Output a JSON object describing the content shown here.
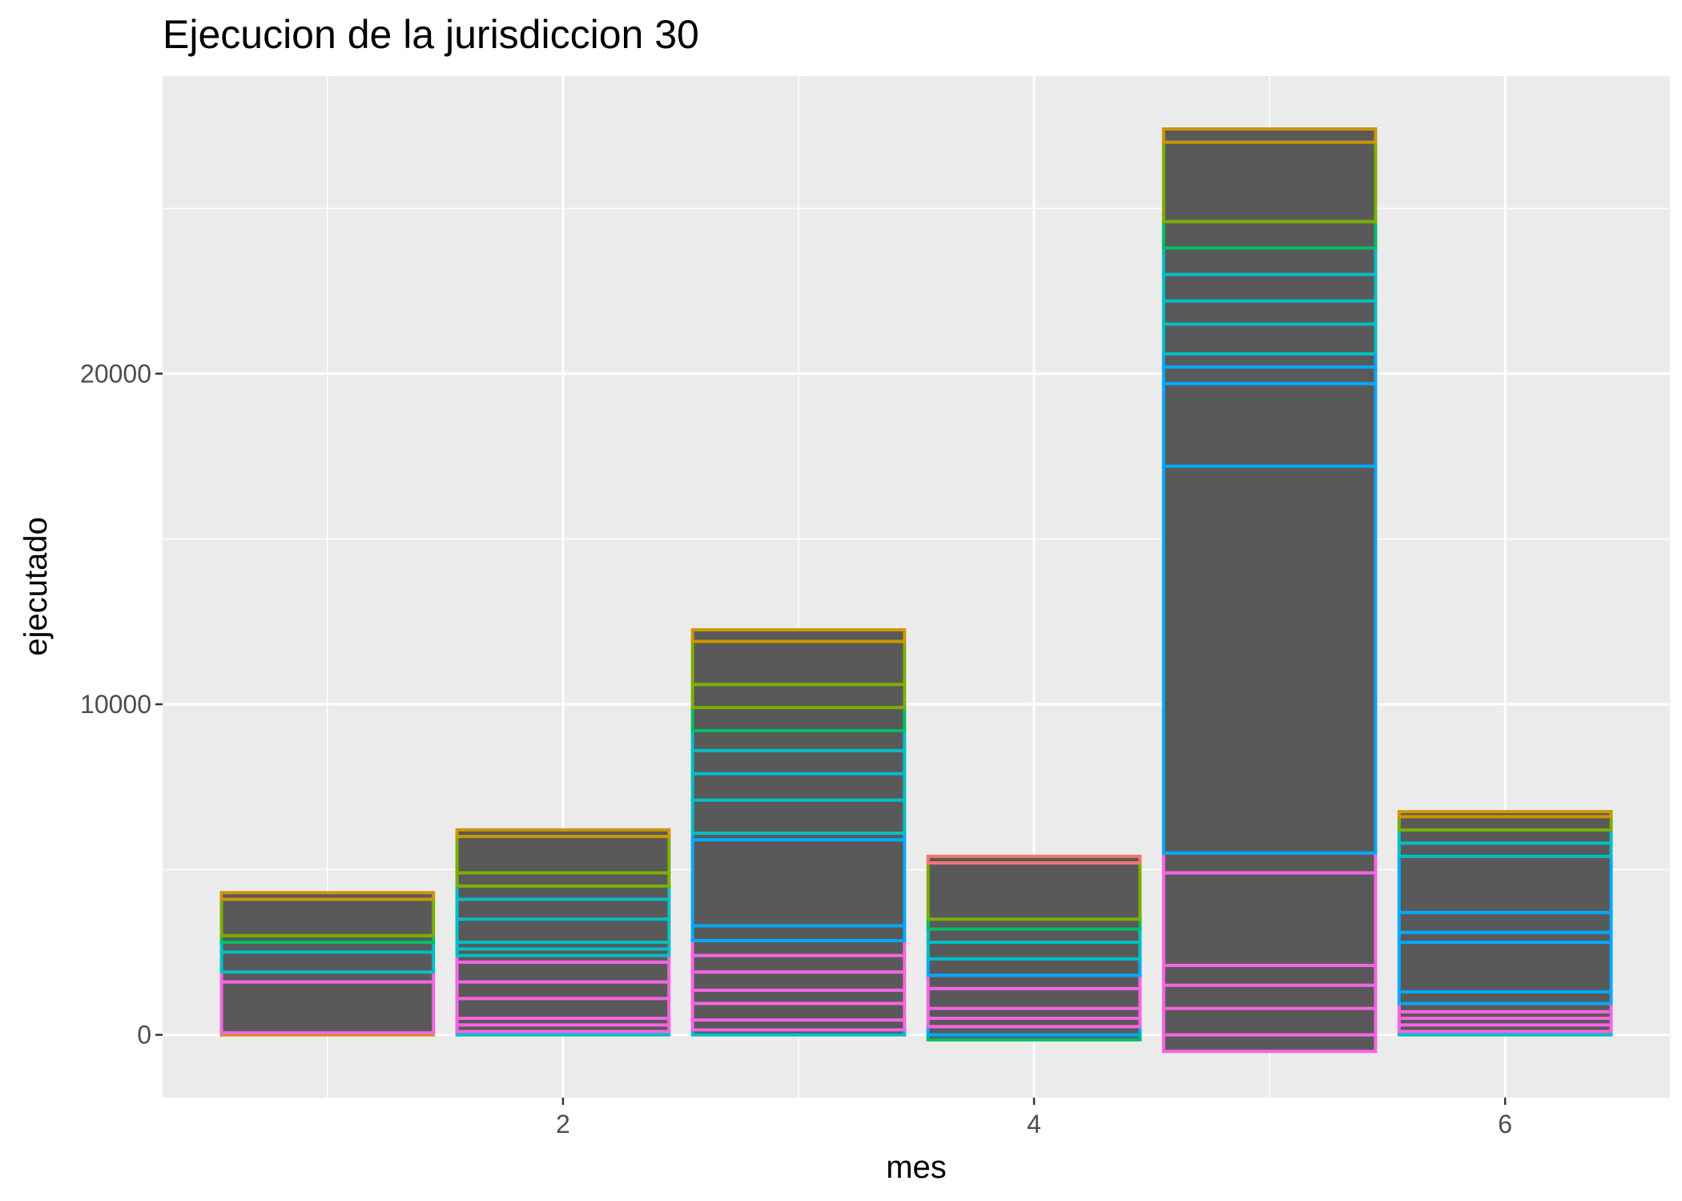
{
  "chart_data": {
    "type": "bar",
    "stacked": true,
    "title": "Ejecucion de la jurisdiccion 30",
    "xlabel": "mes",
    "ylabel": "ejecutado",
    "x": [
      1,
      2,
      3,
      4,
      5,
      6
    ],
    "xlim": [
      0.3,
      6.7
    ],
    "ylim": [
      -1900,
      29000
    ],
    "x_ticks": [
      2,
      4,
      6
    ],
    "y_ticks": [
      0,
      10000,
      20000
    ],
    "grid": true,
    "legend": "none",
    "colors": {
      "panel": "#ebebeb",
      "gridline": "#ffffff",
      "bar_fill": "#595959",
      "pink": "#f564e3",
      "blue": "#00a9ff",
      "cyan": "#00bfc4",
      "green": "#00be67",
      "olive": "#7cae00",
      "gold": "#cd9600",
      "coral": "#f8766d"
    },
    "bars": [
      {
        "x": 1,
        "total": 4300,
        "segments": [
          {
            "from": 0,
            "to": 60,
            "color": "gold"
          },
          {
            "from": 60,
            "to": 1600,
            "color": "pink"
          },
          {
            "from": 1600,
            "to": 1900,
            "color": "pink"
          },
          {
            "from": 1900,
            "to": 2500,
            "color": "cyan"
          },
          {
            "from": 2500,
            "to": 2800,
            "color": "cyan"
          },
          {
            "from": 2800,
            "to": 3000,
            "color": "green"
          },
          {
            "from": 3000,
            "to": 4100,
            "color": "olive"
          },
          {
            "from": 4100,
            "to": 4300,
            "color": "gold"
          }
        ]
      },
      {
        "x": 2,
        "total": 6200,
        "segments": [
          {
            "from": 0,
            "to": 100,
            "color": "cyan"
          },
          {
            "from": 100,
            "to": 300,
            "color": "pink"
          },
          {
            "from": 300,
            "to": 500,
            "color": "pink"
          },
          {
            "from": 500,
            "to": 1100,
            "color": "pink"
          },
          {
            "from": 1100,
            "to": 1600,
            "color": "pink"
          },
          {
            "from": 1600,
            "to": 2200,
            "color": "pink"
          },
          {
            "from": 2200,
            "to": 2400,
            "color": "pink"
          },
          {
            "from": 2400,
            "to": 2600,
            "color": "cyan"
          },
          {
            "from": 2600,
            "to": 2800,
            "color": "cyan"
          },
          {
            "from": 2800,
            "to": 3500,
            "color": "cyan"
          },
          {
            "from": 3500,
            "to": 4100,
            "color": "cyan"
          },
          {
            "from": 4100,
            "to": 4500,
            "color": "cyan"
          },
          {
            "from": 4500,
            "to": 4900,
            "color": "olive"
          },
          {
            "from": 4900,
            "to": 6000,
            "color": "olive"
          },
          {
            "from": 6000,
            "to": 6200,
            "color": "gold"
          }
        ]
      },
      {
        "x": 3,
        "total": 12250,
        "segments": [
          {
            "from": 0,
            "to": 150,
            "color": "cyan"
          },
          {
            "from": 150,
            "to": 450,
            "color": "pink"
          },
          {
            "from": 450,
            "to": 950,
            "color": "pink"
          },
          {
            "from": 950,
            "to": 1350,
            "color": "pink"
          },
          {
            "from": 1350,
            "to": 1900,
            "color": "pink"
          },
          {
            "from": 1900,
            "to": 2400,
            "color": "pink"
          },
          {
            "from": 2400,
            "to": 2850,
            "color": "pink"
          },
          {
            "from": 2850,
            "to": 3300,
            "color": "blue"
          },
          {
            "from": 3300,
            "to": 5900,
            "color": "blue"
          },
          {
            "from": 5900,
            "to": 6100,
            "color": "blue"
          },
          {
            "from": 6100,
            "to": 7100,
            "color": "cyan"
          },
          {
            "from": 7100,
            "to": 7900,
            "color": "cyan"
          },
          {
            "from": 7900,
            "to": 8600,
            "color": "cyan"
          },
          {
            "from": 8600,
            "to": 9200,
            "color": "cyan"
          },
          {
            "from": 9200,
            "to": 9900,
            "color": "green"
          },
          {
            "from": 9900,
            "to": 10600,
            "color": "olive"
          },
          {
            "from": 10600,
            "to": 11900,
            "color": "olive"
          },
          {
            "from": 11900,
            "to": 12250,
            "color": "gold"
          }
        ]
      },
      {
        "x": 4,
        "total": 5400,
        "segments": [
          {
            "from": -150,
            "to": 0,
            "color": "green"
          },
          {
            "from": 0,
            "to": 250,
            "color": "blue"
          },
          {
            "from": 250,
            "to": 500,
            "color": "pink"
          },
          {
            "from": 500,
            "to": 800,
            "color": "pink"
          },
          {
            "from": 800,
            "to": 1400,
            "color": "pink"
          },
          {
            "from": 1400,
            "to": 1800,
            "color": "pink"
          },
          {
            "from": 1800,
            "to": 2300,
            "color": "blue"
          },
          {
            "from": 2300,
            "to": 2800,
            "color": "cyan"
          },
          {
            "from": 2800,
            "to": 3200,
            "color": "cyan"
          },
          {
            "from": 3200,
            "to": 3500,
            "color": "green"
          },
          {
            "from": 3500,
            "to": 5200,
            "color": "olive"
          },
          {
            "from": 5200,
            "to": 5400,
            "color": "coral"
          }
        ]
      },
      {
        "x": 5,
        "total": 27400,
        "segments": [
          {
            "from": -500,
            "to": 0,
            "color": "pink"
          },
          {
            "from": 0,
            "to": 800,
            "color": "pink"
          },
          {
            "from": 800,
            "to": 1500,
            "color": "pink"
          },
          {
            "from": 1500,
            "to": 2100,
            "color": "pink"
          },
          {
            "from": 2100,
            "to": 4900,
            "color": "pink"
          },
          {
            "from": 4900,
            "to": 5500,
            "color": "pink"
          },
          {
            "from": 5500,
            "to": 17200,
            "color": "blue"
          },
          {
            "from": 17200,
            "to": 19700,
            "color": "blue"
          },
          {
            "from": 19700,
            "to": 20200,
            "color": "blue"
          },
          {
            "from": 20200,
            "to": 20600,
            "color": "blue"
          },
          {
            "from": 20600,
            "to": 21500,
            "color": "cyan"
          },
          {
            "from": 21500,
            "to": 22200,
            "color": "cyan"
          },
          {
            "from": 22200,
            "to": 23000,
            "color": "cyan"
          },
          {
            "from": 23000,
            "to": 23800,
            "color": "cyan"
          },
          {
            "from": 23800,
            "to": 24600,
            "color": "green"
          },
          {
            "from": 24600,
            "to": 27000,
            "color": "olive"
          },
          {
            "from": 27000,
            "to": 27400,
            "color": "gold"
          }
        ]
      },
      {
        "x": 6,
        "total": 6750,
        "segments": [
          {
            "from": 0,
            "to": 100,
            "color": "cyan"
          },
          {
            "from": 100,
            "to": 300,
            "color": "pink"
          },
          {
            "from": 300,
            "to": 500,
            "color": "pink"
          },
          {
            "from": 500,
            "to": 700,
            "color": "pink"
          },
          {
            "from": 700,
            "to": 950,
            "color": "pink"
          },
          {
            "from": 950,
            "to": 1300,
            "color": "blue"
          },
          {
            "from": 1300,
            "to": 2800,
            "color": "blue"
          },
          {
            "from": 2800,
            "to": 3100,
            "color": "blue"
          },
          {
            "from": 3100,
            "to": 3700,
            "color": "blue"
          },
          {
            "from": 3700,
            "to": 5400,
            "color": "blue"
          },
          {
            "from": 5400,
            "to": 5800,
            "color": "cyan"
          },
          {
            "from": 5800,
            "to": 6200,
            "color": "cyan"
          },
          {
            "from": 6200,
            "to": 6600,
            "color": "olive"
          },
          {
            "from": 6600,
            "to": 6750,
            "color": "gold"
          }
        ]
      }
    ]
  }
}
